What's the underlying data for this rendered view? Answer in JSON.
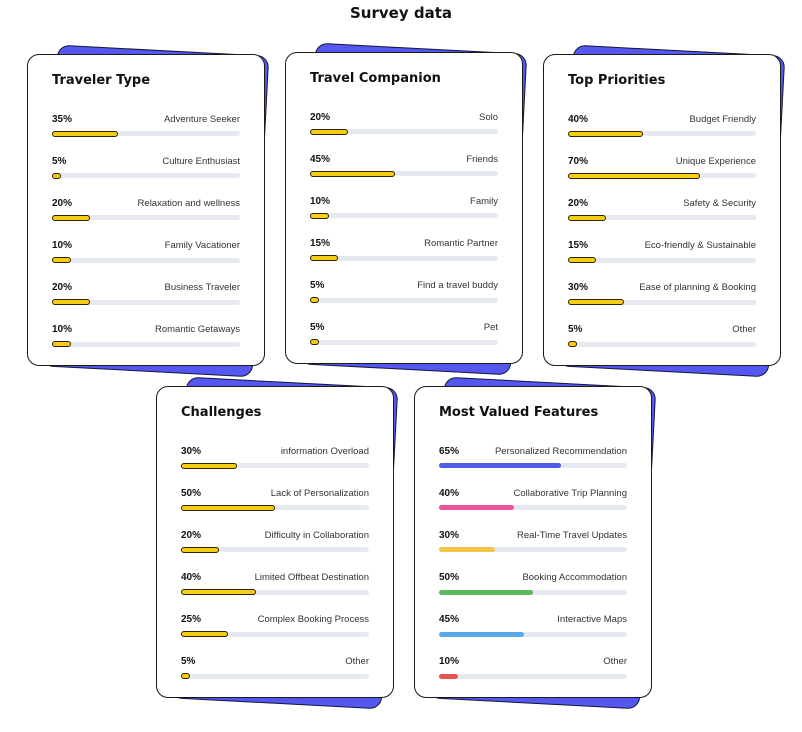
{
  "page_title": "Survey data",
  "chart_data": [
    {
      "type": "bar",
      "title": "Traveler Type",
      "categories": [
        "Adventure Seeker",
        "Culture Enthusiast",
        "Relaxation and wellness",
        "Family Vacationer",
        "Business Traveler",
        "Romantic Getaways"
      ],
      "values": [
        35,
        5,
        20,
        10,
        20,
        10
      ],
      "value_labels": [
        "35%",
        "5%",
        "20%",
        "10%",
        "20%",
        "10%"
      ],
      "bar_colors": [
        "#f7cd12",
        "#f7cd12",
        "#f7cd12",
        "#f7cd12",
        "#f7cd12",
        "#f7cd12"
      ],
      "ylim": [
        0,
        100
      ]
    },
    {
      "type": "bar",
      "title": "Travel Companion",
      "categories": [
        "Solo",
        "Friends",
        "Family",
        "Romantic Partner",
        "Find a travel buddy",
        "Pet"
      ],
      "values": [
        20,
        45,
        10,
        15,
        5,
        5
      ],
      "value_labels": [
        "20%",
        "45%",
        "10%",
        "15%",
        "5%",
        "5%"
      ],
      "bar_colors": [
        "#f7cd12",
        "#f7cd12",
        "#f7cd12",
        "#f7cd12",
        "#f7cd12",
        "#f7cd12"
      ],
      "ylim": [
        0,
        100
      ]
    },
    {
      "type": "bar",
      "title": "Top Priorities",
      "categories": [
        "Budget Friendly",
        "Unique Experience",
        "Safety & Security",
        "Eco-friendly & Sustainable",
        "Ease of planning & Booking",
        "Other"
      ],
      "values": [
        40,
        70,
        20,
        15,
        30,
        5
      ],
      "value_labels": [
        "40%",
        "70%",
        "20%",
        "15%",
        "30%",
        "5%"
      ],
      "bar_colors": [
        "#f7cd12",
        "#f7cd12",
        "#f7cd12",
        "#f7cd12",
        "#f7cd12",
        "#f7cd12"
      ],
      "ylim": [
        0,
        100
      ]
    },
    {
      "type": "bar",
      "title": "Challenges",
      "categories": [
        "information Overload",
        "Lack of Personalization",
        "Difficulty in Collaboration",
        "Limited Offbeat Destination",
        "Complex Booking Process",
        "Other"
      ],
      "values": [
        30,
        50,
        20,
        40,
        25,
        5
      ],
      "value_labels": [
        "30%",
        "50%",
        "20%",
        "40%",
        "25%",
        "5%"
      ],
      "bar_colors": [
        "#f7cd12",
        "#f7cd12",
        "#f7cd12",
        "#f7cd12",
        "#f7cd12",
        "#f7cd12"
      ],
      "ylim": [
        0,
        100
      ]
    },
    {
      "type": "bar",
      "title": "Most Valued Features",
      "categories": [
        "Personalized Recommendation",
        "Collaborative Trip Planning",
        "Real-Time Travel Updates",
        "Booking Accommodation",
        "Interactive Maps",
        "Other"
      ],
      "values": [
        65,
        40,
        30,
        50,
        45,
        10
      ],
      "value_labels": [
        "65%",
        "40%",
        "30%",
        "50%",
        "45%",
        "10%"
      ],
      "bar_colors": [
        "#4e5ee4",
        "#e8559a",
        "#f5c54a",
        "#5cb85c",
        "#5aa8e8",
        "#e8524e"
      ],
      "ylim": [
        0,
        100
      ]
    }
  ]
}
